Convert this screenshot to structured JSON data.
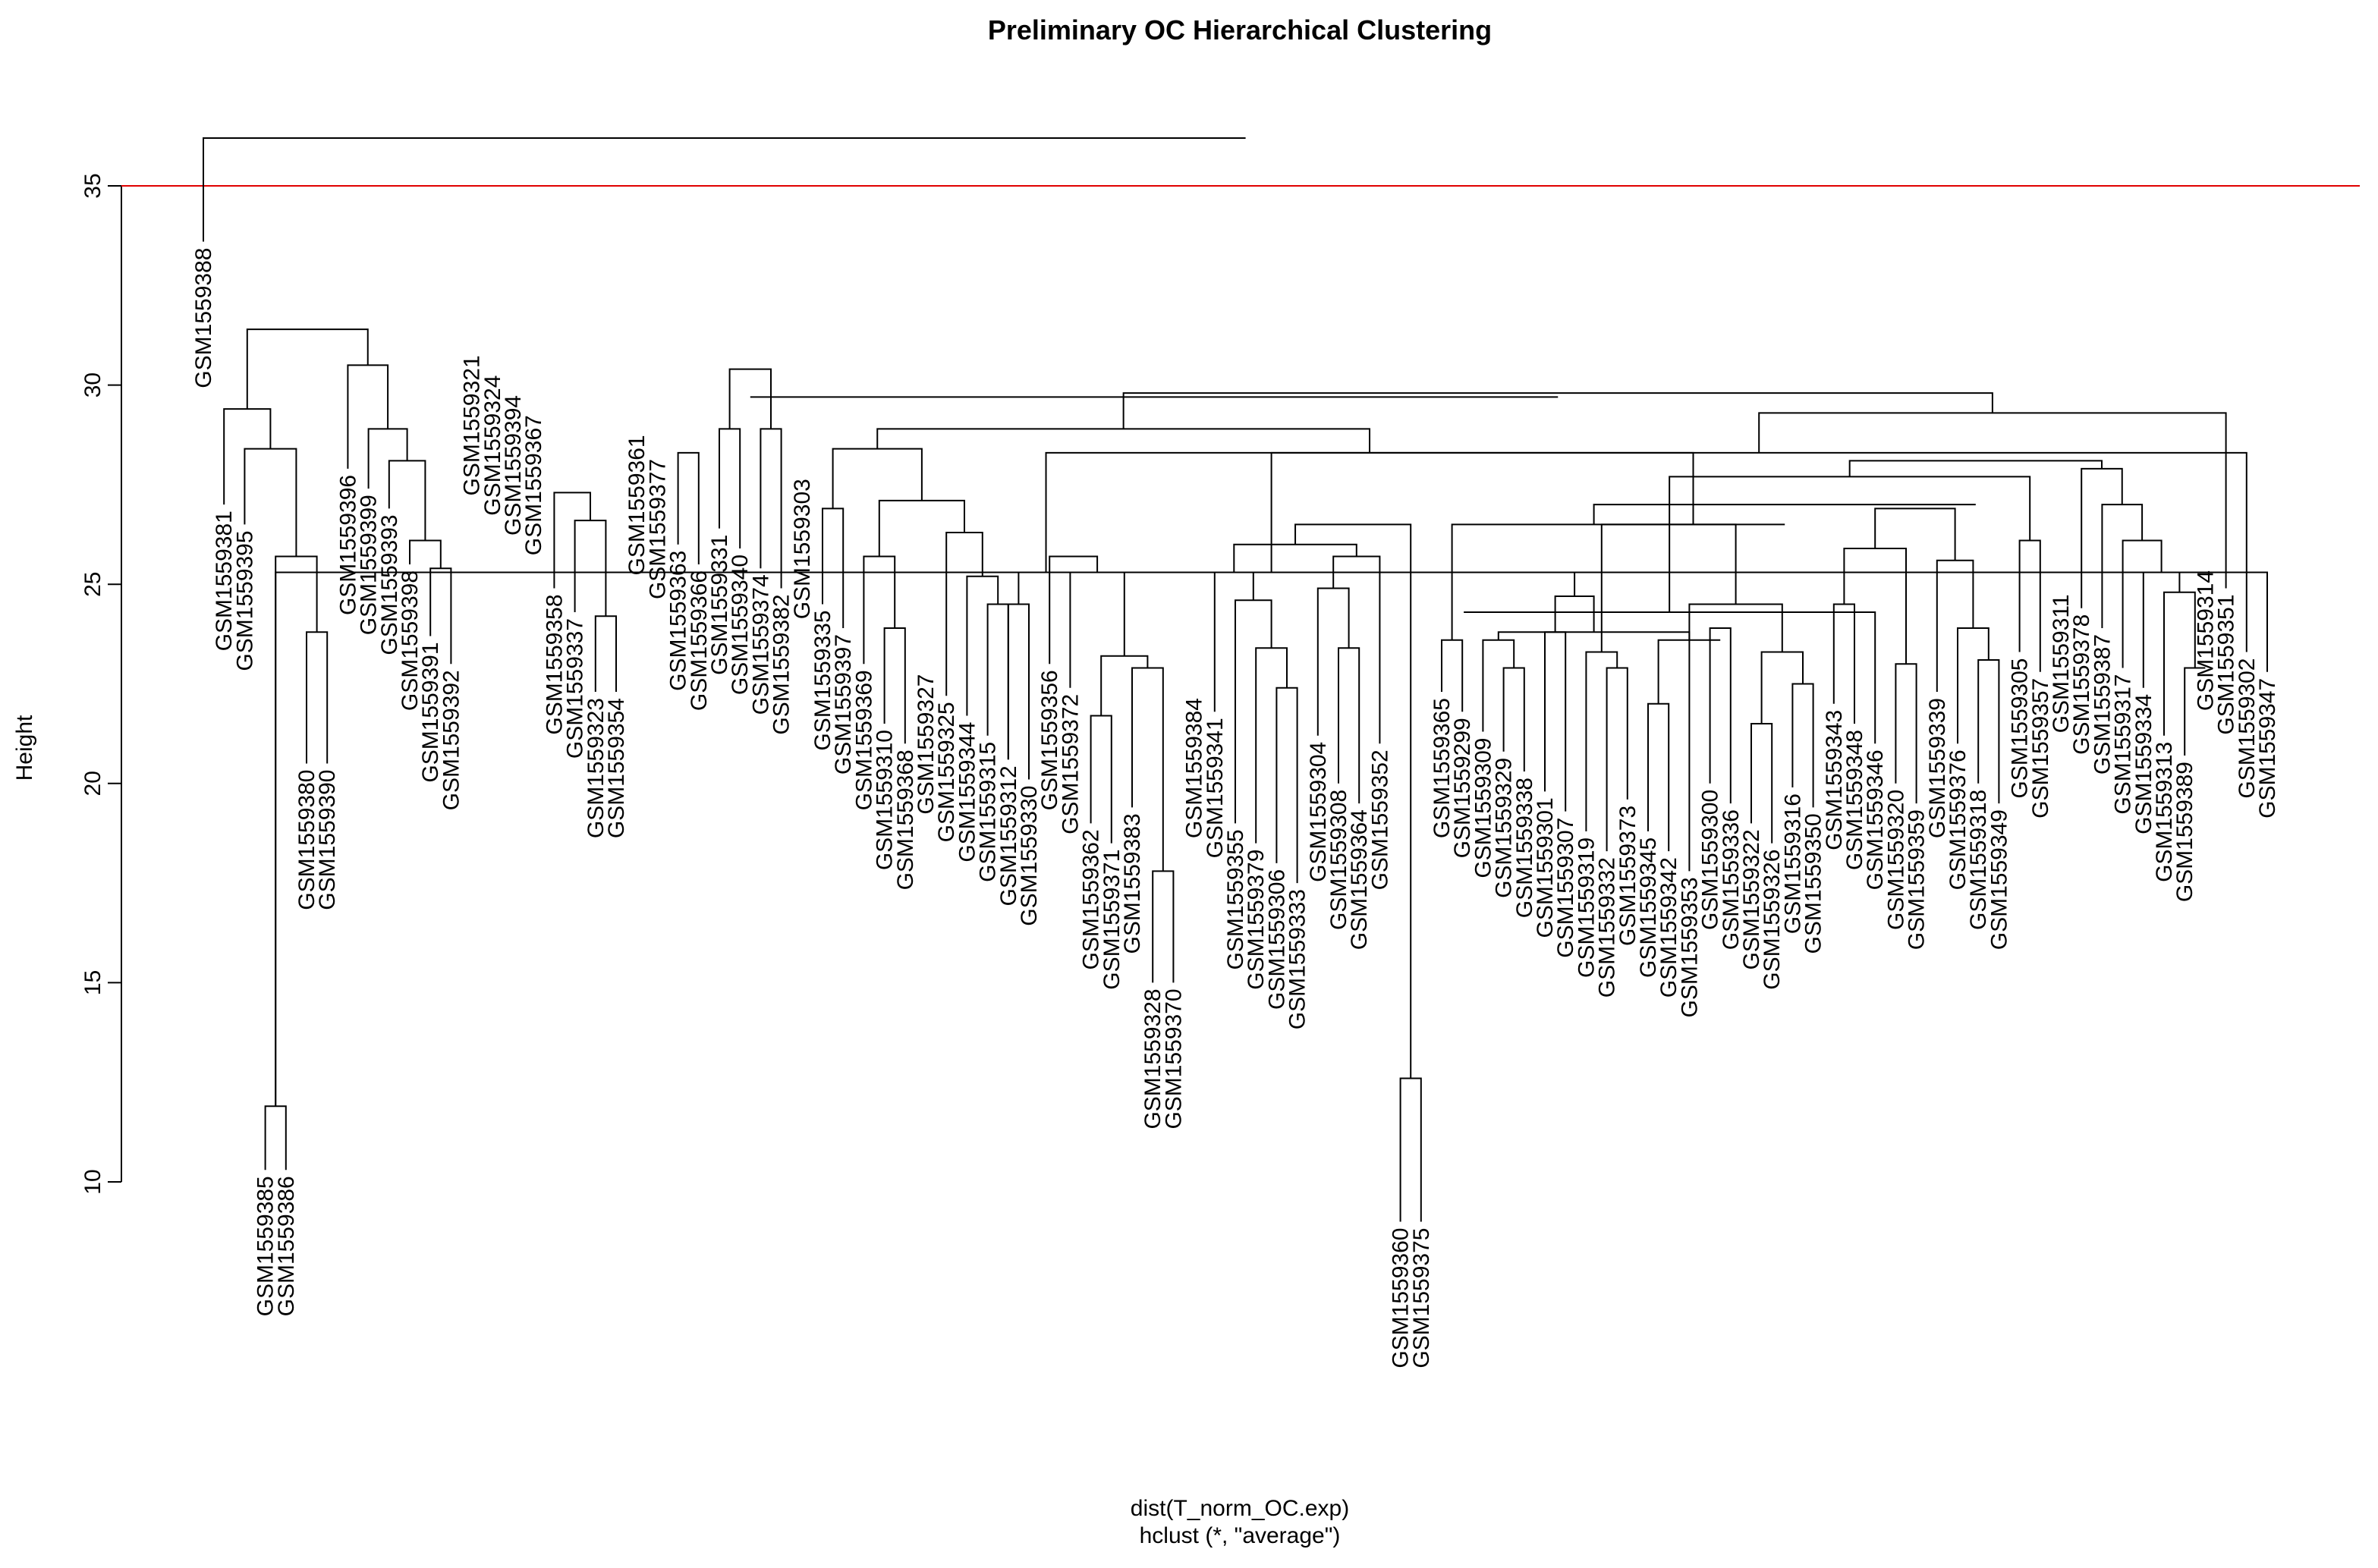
{
  "chart_data": {
    "type": "dendrogram",
    "title": "Preliminary OC Hierarchical Clustering",
    "ylabel": "Height",
    "xlabel": "dist(T_norm_OC.exp)",
    "sublabel": "hclust (*, \"average\")",
    "ylim": [
      10,
      36.2
    ],
    "yticks": [
      10,
      15,
      20,
      25,
      30,
      35
    ],
    "cut_height": 35,
    "cut_line_color": "#e00000",
    "line_color": "#000000",
    "leaves": [
      {
        "label": "GSM1559388",
        "h": 33.6
      },
      {
        "label": "GSM1559381",
        "h": 27.0
      },
      {
        "label": "GSM1559395",
        "h": 26.5
      },
      {
        "label": "GSM1559385",
        "h": 10.3
      },
      {
        "label": "GSM1559386",
        "h": 10.3
      },
      {
        "label": "GSM1559380",
        "h": 20.5
      },
      {
        "label": "GSM1559390",
        "h": 20.5
      },
      {
        "label": "GSM1559396",
        "h": 27.9
      },
      {
        "label": "GSM1559399",
        "h": 27.4
      },
      {
        "label": "GSM1559393",
        "h": 26.9
      },
      {
        "label": "GSM1559398",
        "h": 25.5
      },
      {
        "label": "GSM1559391",
        "h": 23.7
      },
      {
        "label": "GSM1559392",
        "h": 23.0
      },
      {
        "label": "GSM1559321",
        "h": 30.9
      },
      {
        "label": "GSM1559324",
        "h": 30.4
      },
      {
        "label": "GSM1559394",
        "h": 29.9
      },
      {
        "label": "GSM1559367",
        "h": 29.4
      },
      {
        "label": "GSM1559358",
        "h": 24.9
      },
      {
        "label": "GSM1559337",
        "h": 24.3
      },
      {
        "label": "GSM1559323",
        "h": 22.3
      },
      {
        "label": "GSM1559354",
        "h": 22.3
      },
      {
        "label": "GSM1559361",
        "h": 28.9
      },
      {
        "label": "GSM1559377",
        "h": 28.3
      },
      {
        "label": "GSM1559363",
        "h": 26.0
      },
      {
        "label": "GSM1559366",
        "h": 25.5
      },
      {
        "label": "GSM1559331",
        "h": 26.4
      },
      {
        "label": "GSM1559340",
        "h": 25.9
      },
      {
        "label": "GSM1559374",
        "h": 25.4
      },
      {
        "label": "GSM1559382",
        "h": 24.9
      },
      {
        "label": "GSM1559303",
        "h": 27.8
      },
      {
        "label": "GSM1559335",
        "h": 24.5
      },
      {
        "label": "GSM1559397",
        "h": 23.9
      },
      {
        "label": "GSM1559369",
        "h": 23.0
      },
      {
        "label": "GSM1559310",
        "h": 21.5
      },
      {
        "label": "GSM1559368",
        "h": 21.0
      },
      {
        "label": "GSM1559327",
        "h": 22.9
      },
      {
        "label": "GSM1559325",
        "h": 22.2
      },
      {
        "label": "GSM1559344",
        "h": 21.7
      },
      {
        "label": "GSM1559315",
        "h": 21.2
      },
      {
        "label": "GSM1559312",
        "h": 20.6
      },
      {
        "label": "GSM1559330",
        "h": 20.1
      },
      {
        "label": "GSM1559356",
        "h": 23.0
      },
      {
        "label": "GSM1559372",
        "h": 22.4
      },
      {
        "label": "GSM1559362",
        "h": 19.0
      },
      {
        "label": "GSM1559371",
        "h": 18.5
      },
      {
        "label": "GSM1559383",
        "h": 19.4
      },
      {
        "label": "GSM1559328",
        "h": 15.0
      },
      {
        "label": "GSM1559370",
        "h": 15.0
      },
      {
        "label": "GSM1559384",
        "h": 22.3
      },
      {
        "label": "GSM1559341",
        "h": 21.8
      },
      {
        "label": "GSM1559355",
        "h": 19.0
      },
      {
        "label": "GSM1559379",
        "h": 18.5
      },
      {
        "label": "GSM1559306",
        "h": 18.0
      },
      {
        "label": "GSM1559333",
        "h": 17.5
      },
      {
        "label": "GSM1559304",
        "h": 21.2
      },
      {
        "label": "GSM1559308",
        "h": 20.0
      },
      {
        "label": "GSM1559364",
        "h": 19.5
      },
      {
        "label": "GSM1559352",
        "h": 21.0
      },
      {
        "label": "GSM1559360",
        "h": 9.0
      },
      {
        "label": "GSM1559375",
        "h": 9.0
      },
      {
        "label": "GSM1559365",
        "h": 22.3
      },
      {
        "label": "GSM1559299",
        "h": 21.8
      },
      {
        "label": "GSM1559309",
        "h": 21.3
      },
      {
        "label": "GSM1559329",
        "h": 20.8
      },
      {
        "label": "GSM1559338",
        "h": 20.3
      },
      {
        "label": "GSM1559301",
        "h": 19.8
      },
      {
        "label": "GSM1559307",
        "h": 19.3
      },
      {
        "label": "GSM1559319",
        "h": 18.8
      },
      {
        "label": "GSM1559332",
        "h": 18.3
      },
      {
        "label": "GSM1559373",
        "h": 19.6
      },
      {
        "label": "GSM1559345",
        "h": 18.8
      },
      {
        "label": "GSM1559342",
        "h": 18.3
      },
      {
        "label": "GSM1559353",
        "h": 17.8
      },
      {
        "label": "GSM1559300",
        "h": 20.0
      },
      {
        "label": "GSM1559336",
        "h": 19.5
      },
      {
        "label": "GSM1559322",
        "h": 19.0
      },
      {
        "label": "GSM1559326",
        "h": 18.5
      },
      {
        "label": "GSM1559316",
        "h": 19.9
      },
      {
        "label": "GSM1559350",
        "h": 19.4
      },
      {
        "label": "GSM1559343",
        "h": 22.0
      },
      {
        "label": "GSM1559348",
        "h": 21.5
      },
      {
        "label": "GSM1559346",
        "h": 21.0
      },
      {
        "label": "GSM1559320",
        "h": 20.0
      },
      {
        "label": "GSM1559359",
        "h": 19.5
      },
      {
        "label": "GSM1559339",
        "h": 22.3
      },
      {
        "label": "GSM1559376",
        "h": 21.0
      },
      {
        "label": "GSM1559318",
        "h": 20.0
      },
      {
        "label": "GSM1559349",
        "h": 19.5
      },
      {
        "label": "GSM1559305",
        "h": 23.3
      },
      {
        "label": "GSM1559357",
        "h": 22.8
      },
      {
        "label": "GSM1559311",
        "h": 24.9
      },
      {
        "label": "GSM1559378",
        "h": 24.4
      },
      {
        "label": "GSM1559387",
        "h": 23.9
      },
      {
        "label": "GSM1559317",
        "h": 22.9
      },
      {
        "label": "GSM1559334",
        "h": 22.4
      },
      {
        "label": "GSM1559313",
        "h": 21.2
      },
      {
        "label": "GSM1559389",
        "h": 20.7
      },
      {
        "label": "GSM1559314",
        "h": 25.5
      },
      {
        "label": "GSM1559351",
        "h": 24.9
      },
      {
        "label": "GSM1559302",
        "h": 23.3
      },
      {
        "label": "GSM1559347",
        "h": 22.8
      }
    ],
    "merges": [
      [
        3,
        4,
        11.9
      ],
      [
        5,
        6,
        23.8
      ],
      [
        -1,
        -2,
        25.7
      ],
      [
        -3,
        2,
        28.4
      ],
      [
        1,
        -4,
        29.4
      ],
      [
        11,
        12,
        25.4
      ],
      [
        10,
        -6,
        26.1
      ],
      [
        9,
        -7,
        28.1
      ],
      [
        8,
        -8,
        28.9
      ],
      [
        7,
        -9,
        30.5
      ],
      [
        -5,
        -10,
        31.4
      ],
      [
        19,
        20,
        24.2
      ],
      [
        18,
        -12,
        26.6
      ],
      [
        17,
        -13,
        27.3
      ],
      [
        23,
        24,
        28.3
      ],
      [
        25,
        26,
        28.9
      ],
      [
        27,
        28,
        28.9
      ],
      [
        -16,
        -17,
        30.4
      ],
      [
        33,
        34,
        23.9
      ],
      [
        32,
        -19,
        25.7
      ],
      [
        38,
        39,
        24.5
      ],
      [
        37,
        -21,
        25.2
      ],
      [
        36,
        -22,
        26.3
      ],
      [
        -20,
        -23,
        27.1
      ],
      [
        30,
        31,
        26.9
      ],
      [
        -25,
        -24,
        28.4
      ],
      [
        39.5,
        40,
        24.5
      ],
      [
        43,
        44,
        21.7
      ],
      [
        46,
        47,
        17.8
      ],
      [
        45,
        -29,
        22.9
      ],
      [
        -28,
        -30,
        23.2
      ],
      [
        42,
        -31,
        25.3
      ],
      [
        41,
        -32,
        25.7
      ],
      [
        -27,
        -33,
        25.3
      ],
      [
        52,
        53,
        22.4
      ],
      [
        51,
        -35,
        23.4
      ],
      [
        50,
        -36,
        24.6
      ],
      [
        49,
        -37,
        25.3
      ],
      [
        55,
        56,
        23.4
      ],
      [
        54,
        -39,
        24.9
      ],
      [
        -40,
        57,
        25.7
      ],
      [
        -38,
        -41,
        26.0
      ],
      [
        58,
        59,
        12.6
      ],
      [
        -42,
        -43,
        26.5
      ],
      [
        68,
        69,
        22.9
      ],
      [
        67,
        -45,
        23.3
      ],
      [
        66,
        65,
        23.8
      ],
      [
        63,
        64,
        22.9
      ],
      [
        62,
        -48,
        23.6
      ],
      [
        70,
        71,
        22.0
      ],
      [
        73,
        74,
        23.9
      ],
      [
        75,
        76,
        21.5
      ],
      [
        77,
        78,
        22.5
      ],
      [
        -50,
        -51,
        23.6
      ],
      [
        -52,
        -53,
        23.3
      ],
      [
        -49,
        -54,
        23.8
      ],
      [
        -55,
        72,
        24.5
      ],
      [
        -47,
        -56,
        24.7
      ],
      [
        60,
        61,
        23.6
      ],
      [
        -44,
        -58,
        25.3
      ],
      [
        82,
        83,
        23.0
      ],
      [
        -60,
        81,
        24.3
      ],
      [
        80,
        79,
        24.5
      ],
      [
        86,
        87,
        23.1
      ],
      [
        85,
        -64,
        23.9
      ],
      [
        84,
        -65,
        25.6
      ],
      [
        -61,
        -63,
        25.9
      ],
      [
        88,
        89,
        26.1
      ],
      [
        -67,
        -66,
        26.9
      ],
      [
        96,
        97,
        22.9
      ],
      [
        95,
        -70,
        24.8
      ],
      [
        94,
        -71,
        25.3
      ],
      [
        93,
        -72,
        26.1
      ],
      [
        92,
        -73,
        27.0
      ],
      [
        91,
        -74,
        27.9
      ],
      [
        -62,
        -68,
        27.7
      ],
      [
        -76,
        -75,
        28.1
      ],
      [
        100,
        101,
        25.3
      ],
      [
        99,
        -78,
        28.3
      ],
      [
        98,
        -79,
        29.3
      ],
      [
        -59,
        -57,
        26.5
      ],
      [
        -81,
        -77,
        27.0
      ],
      [
        -46,
        -82,
        26.5
      ],
      [
        -34,
        -83,
        28.3
      ],
      [
        -26,
        -84,
        28.9
      ],
      [
        -85,
        -80,
        29.8
      ],
      [
        -18,
        -86,
        29.7
      ]
    ]
  }
}
